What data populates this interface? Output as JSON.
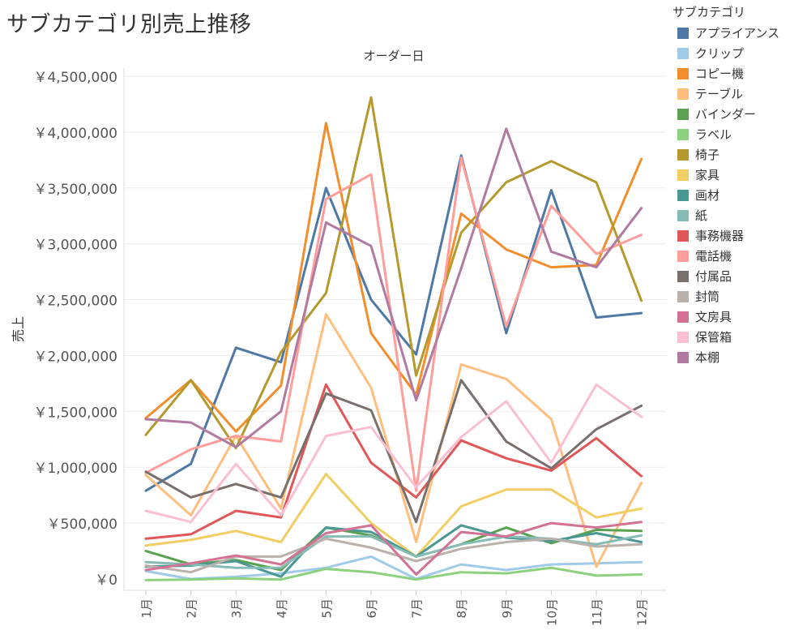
{
  "title": "サブカテゴリ別売上推移",
  "chart_data": {
    "type": "line",
    "xlabel_top": "オーダー日",
    "ylabel": "売上",
    "ylim": [
      0,
      4500000
    ],
    "yticks": [
      0,
      500000,
      1000000,
      1500000,
      2000000,
      2500000,
      3000000,
      3500000,
      4000000,
      4500000
    ],
    "ytick_labels": [
      "￥0",
      "￥500,000",
      "￥1,000,000",
      "￥1,500,000",
      "￥2,000,000",
      "￥2,500,000",
      "￥3,000,000",
      "￥3,500,000",
      "￥4,000,000",
      "￥4,500,000"
    ],
    "categories": [
      "1月",
      "2月",
      "3月",
      "4月",
      "5月",
      "6月",
      "7月",
      "8月",
      "9月",
      "10月",
      "11月",
      "12月"
    ],
    "grid": true,
    "legend_title": "サブカテゴリ",
    "legend_position": "right",
    "series": [
      {
        "name": "アプライアンス",
        "color": "#4e79a7",
        "values": [
          790000,
          1030000,
          2070000,
          1940000,
          3500000,
          2500000,
          2010000,
          3790000,
          2200000,
          3480000,
          2340000,
          2380000
        ]
      },
      {
        "name": "クリップ",
        "color": "#a0cbe8",
        "values": [
          70000,
          0,
          20000,
          50000,
          100000,
          200000,
          0,
          130000,
          80000,
          130000,
          140000,
          150000
        ]
      },
      {
        "name": "コピー機",
        "color": "#f28e2b",
        "values": [
          1440000,
          1780000,
          1320000,
          1730000,
          4080000,
          2200000,
          1650000,
          3270000,
          2950000,
          2790000,
          2810000,
          3760000
        ]
      },
      {
        "name": "テーブル",
        "color": "#ffbe7d",
        "values": [
          930000,
          570000,
          1280000,
          630000,
          2370000,
          1710000,
          330000,
          1920000,
          1790000,
          1430000,
          110000,
          860000
        ]
      },
      {
        "name": "バインダー",
        "color": "#59a14f",
        "values": [
          250000,
          130000,
          170000,
          80000,
          460000,
          390000,
          200000,
          310000,
          460000,
          320000,
          440000,
          430000
        ]
      },
      {
        "name": "ラベル",
        "color": "#8cd17d",
        "values": [
          -10000,
          -5000,
          5000,
          -5000,
          90000,
          60000,
          -5000,
          60000,
          50000,
          100000,
          30000,
          40000
        ]
      },
      {
        "name": "椅子",
        "color": "#b6992d",
        "values": [
          1290000,
          1780000,
          1170000,
          2030000,
          2560000,
          4310000,
          1820000,
          3100000,
          3550000,
          3740000,
          3550000,
          2490000
        ]
      },
      {
        "name": "家具",
        "color": "#f1ce63",
        "values": [
          300000,
          350000,
          430000,
          330000,
          940000,
          500000,
          200000,
          650000,
          800000,
          800000,
          550000,
          630000
        ]
      },
      {
        "name": "画材",
        "color": "#499894",
        "values": [
          110000,
          120000,
          160000,
          20000,
          460000,
          420000,
          200000,
          480000,
          370000,
          340000,
          410000,
          330000
        ]
      },
      {
        "name": "紙",
        "color": "#86bcb6",
        "values": [
          150000,
          130000,
          100000,
          100000,
          380000,
          380000,
          200000,
          310000,
          380000,
          360000,
          310000,
          390000
        ]
      },
      {
        "name": "事務機器",
        "color": "#e15759",
        "values": [
          360000,
          400000,
          610000,
          550000,
          1740000,
          1040000,
          730000,
          1240000,
          1080000,
          970000,
          1260000,
          920000
        ]
      },
      {
        "name": "電話機",
        "color": "#ff9d9a",
        "values": [
          950000,
          1160000,
          1280000,
          1230000,
          3400000,
          3620000,
          790000,
          3770000,
          2260000,
          3340000,
          2910000,
          3080000
        ]
      },
      {
        "name": "付属品",
        "color": "#79706e",
        "values": [
          960000,
          730000,
          850000,
          730000,
          1660000,
          1510000,
          510000,
          1780000,
          1230000,
          990000,
          1340000,
          1550000
        ]
      },
      {
        "name": "封筒",
        "color": "#bab0ac",
        "values": [
          120000,
          60000,
          200000,
          200000,
          360000,
          280000,
          160000,
          270000,
          330000,
          360000,
          290000,
          310000
        ]
      },
      {
        "name": "文房具",
        "color": "#d37295",
        "values": [
          80000,
          140000,
          210000,
          130000,
          410000,
          480000,
          40000,
          420000,
          380000,
          500000,
          460000,
          510000
        ]
      },
      {
        "name": "保管箱",
        "color": "#fabfd2",
        "values": [
          610000,
          510000,
          1030000,
          570000,
          1280000,
          1360000,
          820000,
          1270000,
          1590000,
          1040000,
          1740000,
          1450000
        ]
      },
      {
        "name": "本棚",
        "color": "#b07aa1",
        "values": [
          1430000,
          1400000,
          1180000,
          1500000,
          3190000,
          2980000,
          1600000,
          2780000,
          4030000,
          2930000,
          2790000,
          3320000
        ]
      }
    ]
  }
}
